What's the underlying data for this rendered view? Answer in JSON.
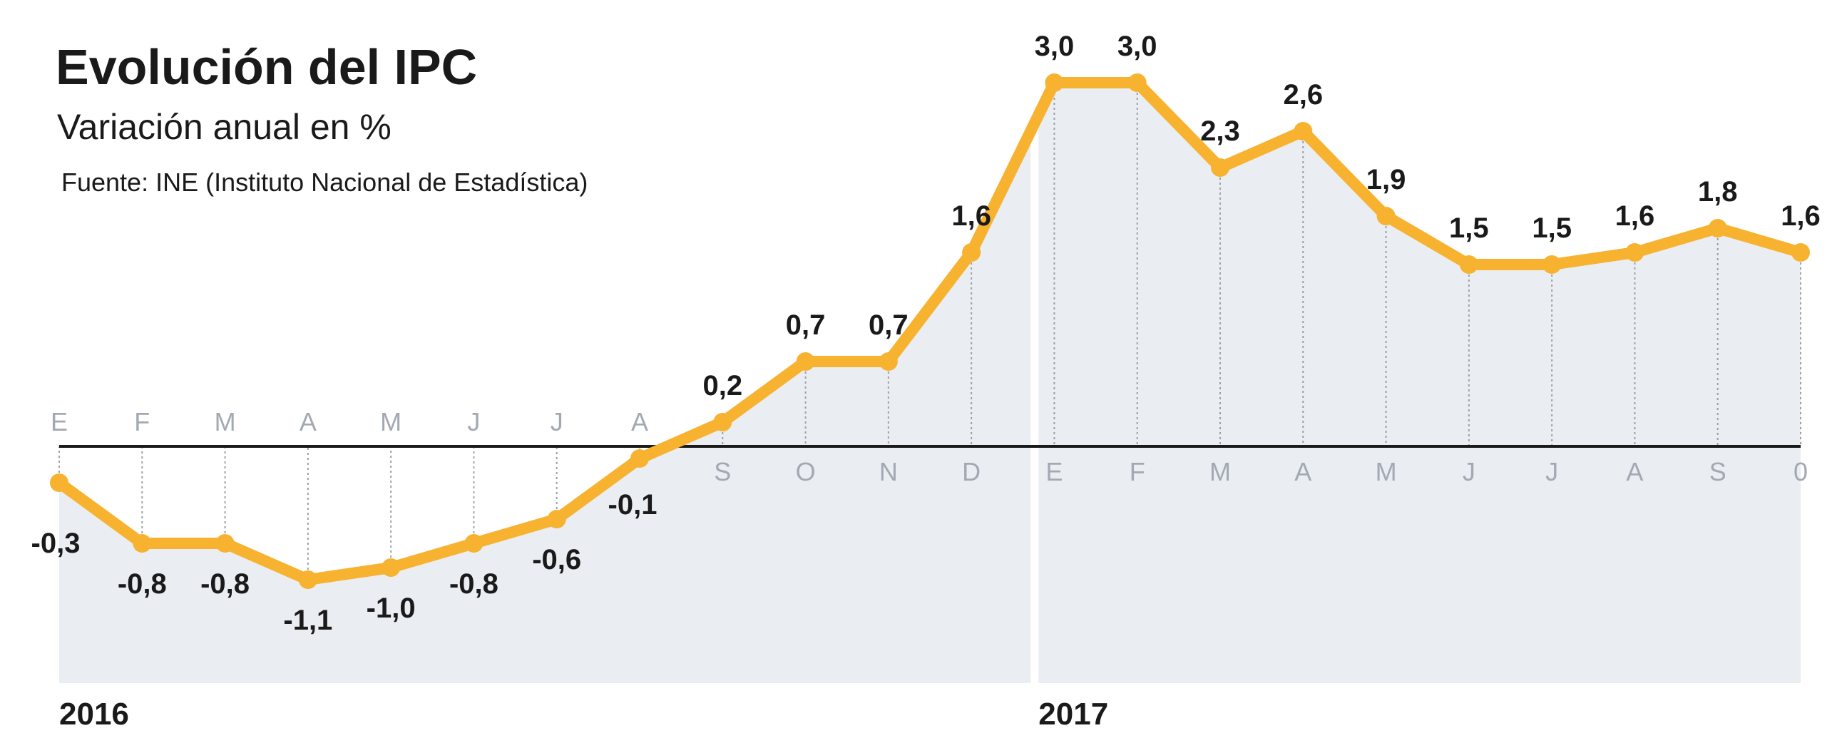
{
  "title": "Evolución del IPC",
  "subtitle": "Variación anual en %",
  "source": "Fuente: INE (Instituto Nacional de Estadística)",
  "chart_data": {
    "type": "line",
    "title": "Evolución del IPC",
    "subtitle": "Variación anual en %",
    "x": [
      "E",
      "F",
      "M",
      "A",
      "M",
      "J",
      "J",
      "A",
      "S",
      "O",
      "N",
      "D",
      "E",
      "F",
      "M",
      "A",
      "M",
      "J",
      "J",
      "A",
      "S",
      "0"
    ],
    "years": [
      {
        "label": "2016",
        "start_index": 0
      },
      {
        "label": "2017",
        "start_index": 12
      }
    ],
    "series": [
      {
        "values": [
          -0.3,
          -0.8,
          -0.8,
          -1.1,
          -1.0,
          -0.8,
          -0.6,
          -0.1,
          0.2,
          0.7,
          0.7,
          1.6,
          3.0,
          3.0,
          2.3,
          2.6,
          1.9,
          1.5,
          1.5,
          1.6,
          1.8,
          1.6
        ]
      }
    ],
    "data_labels": [
      "-0,3",
      "-0,8",
      "-0,8",
      "-1,1",
      "-1,0",
      "-0,8",
      "-0,6",
      "-0,1",
      "0,2",
      "0,7",
      "0,7",
      "1,6",
      "3,0",
      "3,0",
      "2,3",
      "2,6",
      "1,9",
      "1,5",
      "1,5",
      "1,6",
      "1,8",
      "1,6"
    ],
    "ylim": [
      -1.9,
      3.0
    ],
    "grid": false,
    "colors": {
      "line": "#F7B230",
      "fill": "#EAEDF2",
      "zero_line": "#1a1a1a",
      "month_label": "#A3A9B3"
    }
  }
}
